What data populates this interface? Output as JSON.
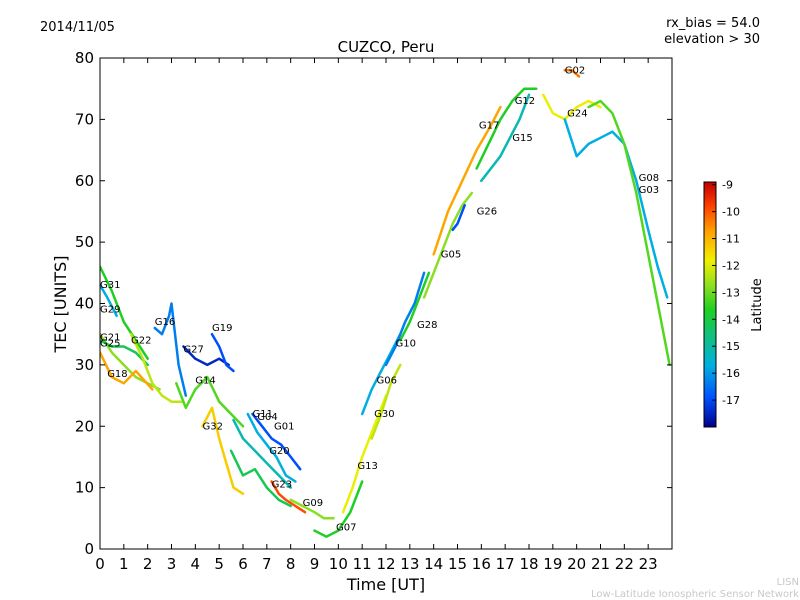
{
  "date": "2014/11/05",
  "params": {
    "rx_bias": "rx_bias = 54.0",
    "elevation": "elevation > 30"
  },
  "footer": {
    "line1": "LISN",
    "line2": "Low-Latitude Ionospheric Sensor Network"
  },
  "chart_data": {
    "type": "line",
    "title": "CUZCO, Peru",
    "xlabel": "Time [UT]",
    "ylabel": "TEC [UNITS]",
    "xlim": [
      0,
      24
    ],
    "ylim": [
      0,
      80
    ],
    "xticks": [
      "0",
      "1",
      "2",
      "3",
      "4",
      "5",
      "6",
      "7",
      "8",
      "9",
      "10",
      "11",
      "12",
      "13",
      "14",
      "15",
      "16",
      "17",
      "18",
      "19",
      "20",
      "21",
      "22",
      "23"
    ],
    "yticks": [
      "0",
      "10",
      "20",
      "30",
      "40",
      "50",
      "60",
      "70",
      "80"
    ],
    "grid": false,
    "colorbar": {
      "label": "Latitude",
      "range": [
        -18,
        -8.9
      ],
      "ticks": [
        "-9",
        "-10",
        "-11",
        "-12",
        "-13",
        "-14",
        "-15",
        "-16",
        "-17"
      ],
      "colors": [
        "#00008b",
        "#0050ff",
        "#00b0e0",
        "#10c080",
        "#20d020",
        "#90e020",
        "#f0f000",
        "#ffa000",
        "#ff4000",
        "#c00000"
      ]
    },
    "series": [
      {
        "name": "G31",
        "label_at": [
          0.0,
          42.5
        ],
        "lat": -14.0,
        "points": [
          [
            0.0,
            46
          ],
          [
            0.5,
            42
          ],
          [
            1.0,
            37
          ],
          [
            1.5,
            34
          ],
          [
            2.0,
            31
          ]
        ]
      },
      {
        "name": "G29",
        "label_at": [
          0.0,
          38.5
        ],
        "lat": -16.0,
        "points": [
          [
            0.0,
            43
          ],
          [
            0.3,
            41
          ],
          [
            0.7,
            38
          ]
        ]
      },
      {
        "name": "G21",
        "label_at": [
          0.0,
          34.0
        ],
        "lat": -13.0,
        "points": [
          [
            0.0,
            35
          ],
          [
            0.5,
            32
          ],
          [
            1.0,
            30
          ],
          [
            1.5,
            28
          ],
          [
            2.0,
            27
          ],
          [
            2.5,
            26
          ]
        ]
      },
      {
        "name": "G25",
        "label_at": [
          0.0,
          33.0
        ],
        "lat": -14.5,
        "points": [
          [
            0.0,
            34
          ],
          [
            0.5,
            33
          ],
          [
            1.0,
            33
          ],
          [
            1.5,
            32
          ],
          [
            2.0,
            30
          ]
        ]
      },
      {
        "name": "G18",
        "label_at": [
          0.3,
          28.0
        ],
        "lat": -11.0,
        "points": [
          [
            0.0,
            32
          ],
          [
            0.5,
            28
          ],
          [
            1.0,
            27
          ],
          [
            1.5,
            29
          ],
          [
            2.2,
            26
          ]
        ]
      },
      {
        "name": "G22",
        "label_at": [
          1.3,
          33.5
        ],
        "lat": -12.5,
        "points": [
          [
            1.3,
            35
          ],
          [
            1.8,
            31
          ],
          [
            2.2,
            27
          ],
          [
            2.6,
            25
          ],
          [
            3.0,
            24
          ],
          [
            3.5,
            24
          ]
        ]
      },
      {
        "name": "G16",
        "label_at": [
          2.3,
          36.5
        ],
        "lat": -16.5,
        "points": [
          [
            2.3,
            36
          ],
          [
            2.6,
            35
          ],
          [
            2.9,
            38
          ],
          [
            3.0,
            40
          ],
          [
            3.3,
            30
          ],
          [
            3.6,
            25
          ]
        ]
      },
      {
        "name": "G27",
        "label_at": [
          3.5,
          32.0
        ],
        "lat": -17.5,
        "points": [
          [
            3.5,
            33
          ],
          [
            4.0,
            31
          ],
          [
            4.5,
            30
          ],
          [
            5.0,
            31
          ],
          [
            5.4,
            30
          ]
        ]
      },
      {
        "name": "G19",
        "label_at": [
          4.7,
          35.5
        ],
        "lat": -17.0,
        "points": [
          [
            4.7,
            35
          ],
          [
            5.0,
            33
          ],
          [
            5.3,
            30
          ],
          [
            5.6,
            29
          ]
        ]
      },
      {
        "name": "G14",
        "label_at": [
          4.0,
          27.0
        ],
        "lat": -13.5,
        "points": [
          [
            3.2,
            27
          ],
          [
            3.6,
            23
          ],
          [
            4.0,
            26
          ],
          [
            4.5,
            28
          ],
          [
            5.0,
            24
          ],
          [
            5.5,
            22
          ],
          [
            6.0,
            20
          ]
        ]
      },
      {
        "name": "G32",
        "label_at": [
          4.3,
          19.5
        ],
        "lat": -11.5,
        "points": [
          [
            4.3,
            20
          ],
          [
            4.7,
            23
          ],
          [
            5.0,
            18
          ],
          [
            5.3,
            14
          ],
          [
            5.6,
            10
          ],
          [
            6.0,
            9
          ]
        ]
      },
      {
        "name": "G11",
        "label_at": [
          6.4,
          21.5
        ],
        "lat": -17.0,
        "points": [
          [
            6.4,
            22
          ],
          [
            6.8,
            20
          ],
          [
            7.2,
            18
          ],
          [
            7.6,
            17
          ],
          [
            8.0,
            15
          ],
          [
            8.4,
            13
          ]
        ]
      },
      {
        "name": "G04",
        "label_at": [
          6.6,
          21.0
        ],
        "lat": -16.0,
        "points": [
          [
            6.2,
            22
          ],
          [
            6.6,
            19
          ],
          [
            7.0,
            17
          ],
          [
            7.4,
            15
          ],
          [
            7.8,
            12
          ],
          [
            8.2,
            11
          ]
        ]
      },
      {
        "name": "G01",
        "label_at": [
          7.3,
          19.5
        ],
        "lat": -15.5,
        "points": [
          [
            5.6,
            21
          ],
          [
            6.0,
            18
          ],
          [
            6.5,
            16
          ],
          [
            7.0,
            14
          ],
          [
            7.5,
            12
          ],
          [
            8.0,
            10
          ]
        ]
      },
      {
        "name": "G20",
        "label_at": [
          7.1,
          15.5
        ],
        "lat": -14.5,
        "points": [
          [
            5.5,
            16
          ],
          [
            6.0,
            12
          ],
          [
            6.5,
            13
          ],
          [
            7.0,
            10
          ],
          [
            7.5,
            8
          ],
          [
            8.0,
            7
          ]
        ]
      },
      {
        "name": "G23",
        "label_at": [
          7.2,
          10.0
        ],
        "lat": -10.0,
        "points": [
          [
            7.2,
            11
          ],
          [
            7.5,
            9
          ],
          [
            7.8,
            8
          ],
          [
            8.2,
            7
          ],
          [
            8.6,
            6
          ]
        ]
      },
      {
        "name": "G09",
        "label_at": [
          8.5,
          7.0
        ],
        "lat": -13.0,
        "points": [
          [
            8.0,
            8
          ],
          [
            8.5,
            7
          ],
          [
            9.0,
            6
          ],
          [
            9.4,
            5
          ],
          [
            9.8,
            5
          ]
        ]
      },
      {
        "name": "G07",
        "label_at": [
          9.9,
          3.0
        ],
        "lat": -14.0,
        "points": [
          [
            9.0,
            3
          ],
          [
            9.5,
            2
          ],
          [
            10.0,
            3
          ],
          [
            10.5,
            6
          ],
          [
            11.0,
            11
          ]
        ]
      },
      {
        "name": "G13",
        "label_at": [
          10.8,
          13.0
        ],
        "lat": -12.0,
        "points": [
          [
            10.2,
            6
          ],
          [
            10.6,
            10
          ],
          [
            11.0,
            15
          ],
          [
            11.5,
            20
          ],
          [
            12.0,
            25
          ]
        ]
      },
      {
        "name": "G30",
        "label_at": [
          11.5,
          21.5
        ],
        "lat": -12.5,
        "points": [
          [
            11.4,
            18
          ],
          [
            11.8,
            22
          ],
          [
            12.2,
            27
          ],
          [
            12.6,
            30
          ]
        ]
      },
      {
        "name": "G06",
        "label_at": [
          11.6,
          27.0
        ],
        "lat": -16.0,
        "points": [
          [
            11.0,
            22
          ],
          [
            11.4,
            26
          ],
          [
            11.8,
            29
          ],
          [
            12.2,
            32
          ],
          [
            12.6,
            35
          ]
        ]
      },
      {
        "name": "G10",
        "label_at": [
          12.4,
          33.0
        ],
        "lat": -16.5,
        "points": [
          [
            12.0,
            30
          ],
          [
            12.4,
            33
          ],
          [
            12.8,
            37
          ],
          [
            13.2,
            40
          ],
          [
            13.6,
            45
          ]
        ]
      },
      {
        "name": "G28",
        "label_at": [
          13.3,
          36.0
        ],
        "lat": -14.0,
        "points": [
          [
            12.6,
            34
          ],
          [
            13.0,
            37
          ],
          [
            13.4,
            41
          ],
          [
            13.8,
            45
          ]
        ]
      },
      {
        "name": "G05",
        "label_at": [
          14.3,
          47.5
        ],
        "lat": -13.0,
        "points": [
          [
            13.6,
            41
          ],
          [
            14.0,
            45
          ],
          [
            14.4,
            49
          ],
          [
            14.8,
            53
          ],
          [
            15.2,
            56
          ],
          [
            15.6,
            58
          ]
        ]
      },
      {
        "name": "G26",
        "label_at": [
          15.8,
          54.5
        ],
        "lat": -17.0,
        "points": [
          [
            14.8,
            52
          ],
          [
            15.0,
            53
          ],
          [
            15.3,
            56
          ]
        ]
      },
      {
        "name": "G17",
        "label_at": [
          15.9,
          68.5
        ],
        "lat": -11.0,
        "points": [
          [
            14.0,
            48
          ],
          [
            14.6,
            55
          ],
          [
            15.2,
            60
          ],
          [
            15.8,
            65
          ],
          [
            16.4,
            69
          ],
          [
            16.8,
            72
          ]
        ]
      },
      {
        "name": "G15",
        "label_at": [
          17.3,
          66.5
        ],
        "lat": -15.5,
        "points": [
          [
            16.0,
            60
          ],
          [
            16.4,
            62
          ],
          [
            16.8,
            64
          ],
          [
            17.2,
            67
          ],
          [
            17.6,
            70
          ],
          [
            18.0,
            74
          ]
        ]
      },
      {
        "name": "G12",
        "label_at": [
          17.4,
          72.5
        ],
        "lat": -14.0,
        "points": [
          [
            15.8,
            62
          ],
          [
            16.3,
            66
          ],
          [
            16.8,
            70
          ],
          [
            17.3,
            73
          ],
          [
            17.8,
            75
          ],
          [
            18.3,
            75
          ]
        ]
      },
      {
        "name": "G24",
        "label_at": [
          19.6,
          70.5
        ],
        "lat": -12.0,
        "points": [
          [
            18.6,
            74
          ],
          [
            19.0,
            71
          ],
          [
            19.5,
            70
          ],
          [
            20.0,
            72
          ],
          [
            20.5,
            73
          ],
          [
            21.0,
            72
          ]
        ]
      },
      {
        "name": "G02",
        "label_at": [
          19.5,
          77.5
        ],
        "lat": -10.5,
        "points": [
          [
            19.5,
            78
          ],
          [
            19.8,
            78
          ],
          [
            20.1,
            77
          ]
        ]
      },
      {
        "name": "G08",
        "label_at": [
          22.6,
          60.0
        ],
        "lat": -16.0,
        "points": [
          [
            19.5,
            70
          ],
          [
            20.0,
            64
          ],
          [
            20.5,
            66
          ],
          [
            21.0,
            67
          ],
          [
            21.5,
            68
          ],
          [
            22.0,
            66
          ],
          [
            22.5,
            60
          ],
          [
            23.0,
            52
          ],
          [
            23.4,
            46
          ],
          [
            23.8,
            41
          ]
        ]
      },
      {
        "name": "G03",
        "label_at": [
          22.6,
          58.0
        ],
        "lat": -13.5,
        "points": [
          [
            20.5,
            72
          ],
          [
            21.0,
            73
          ],
          [
            21.5,
            71
          ],
          [
            22.0,
            66
          ],
          [
            22.5,
            58
          ],
          [
            23.0,
            48
          ],
          [
            23.5,
            38
          ],
          [
            23.9,
            30
          ]
        ]
      }
    ]
  }
}
